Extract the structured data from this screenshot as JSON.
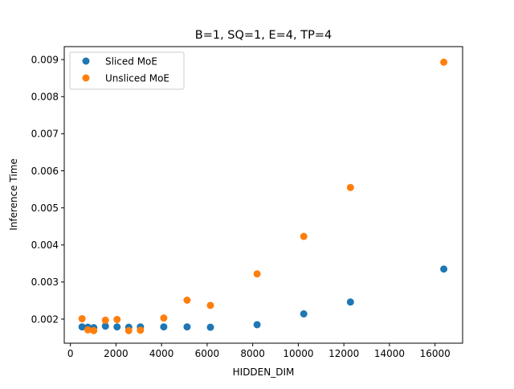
{
  "chart_data": {
    "type": "scatter",
    "title": "B=1, SQ=1, E=4, TP=4",
    "xlabel": "HIDDEN_DIM",
    "ylabel": "Inference Time",
    "xlim": [
      -270,
      17210
    ],
    "ylim": [
      0.00135,
      0.00935
    ],
    "grid": false,
    "legend_position": "top-left",
    "x_ticks": [
      0,
      2000,
      4000,
      6000,
      8000,
      10000,
      12000,
      14000,
      16000
    ],
    "x_tick_labels": [
      "0",
      "2000",
      "4000",
      "6000",
      "8000",
      "10000",
      "12000",
      "14000",
      "16000"
    ],
    "y_ticks": [
      0.002,
      0.003,
      0.004,
      0.005,
      0.006,
      0.007,
      0.008,
      0.009
    ],
    "y_tick_labels": [
      "0.002",
      "0.003",
      "0.004",
      "0.005",
      "0.006",
      "0.007",
      "0.008",
      "0.009"
    ],
    "series": [
      {
        "name": "Sliced MoE",
        "color": "#1f77b4",
        "points": [
          {
            "x": 512,
            "y": 0.00179
          },
          {
            "x": 768,
            "y": 0.00178
          },
          {
            "x": 1024,
            "y": 0.00177
          },
          {
            "x": 1536,
            "y": 0.00181
          },
          {
            "x": 2048,
            "y": 0.00179
          },
          {
            "x": 2560,
            "y": 0.00178
          },
          {
            "x": 3072,
            "y": 0.00179
          },
          {
            "x": 4096,
            "y": 0.00179
          },
          {
            "x": 5120,
            "y": 0.00179
          },
          {
            "x": 6144,
            "y": 0.00178
          },
          {
            "x": 8192,
            "y": 0.00185
          },
          {
            "x": 10240,
            "y": 0.00214
          },
          {
            "x": 12288,
            "y": 0.00246
          },
          {
            "x": 16384,
            "y": 0.00335
          }
        ]
      },
      {
        "name": "Unsliced MoE",
        "color": "#ff7f0e",
        "points": [
          {
            "x": 512,
            "y": 0.00201
          },
          {
            "x": 768,
            "y": 0.00171
          },
          {
            "x": 1024,
            "y": 0.00169
          },
          {
            "x": 1536,
            "y": 0.00197
          },
          {
            "x": 2048,
            "y": 0.00199
          },
          {
            "x": 2560,
            "y": 0.00169
          },
          {
            "x": 3072,
            "y": 0.0017
          },
          {
            "x": 4096,
            "y": 0.00203
          },
          {
            "x": 5120,
            "y": 0.00251
          },
          {
            "x": 6144,
            "y": 0.00237
          },
          {
            "x": 8192,
            "y": 0.00322
          },
          {
            "x": 10240,
            "y": 0.00423
          },
          {
            "x": 12288,
            "y": 0.00555
          },
          {
            "x": 16384,
            "y": 0.00893
          }
        ]
      }
    ]
  }
}
